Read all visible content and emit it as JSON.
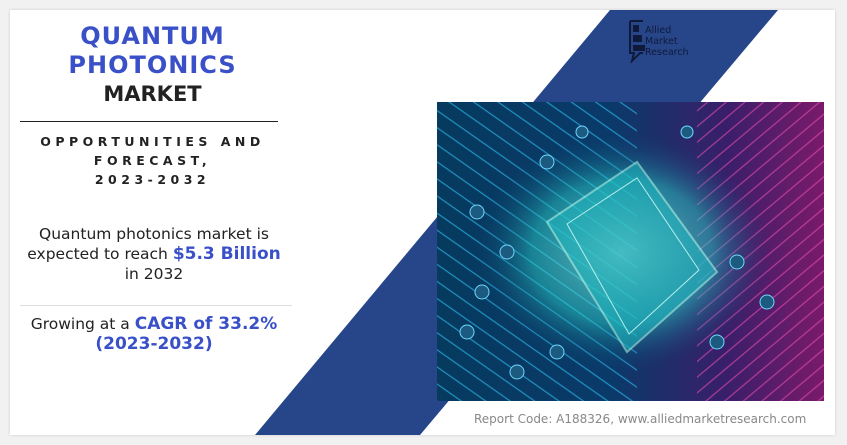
{
  "title": {
    "line1": "QUANTUM",
    "line2": "PHOTONICS",
    "line3": "MARKET"
  },
  "subtitle": {
    "line1": "OPPORTUNITIES AND",
    "line2": "FORECAST,",
    "line3": "2023-2032"
  },
  "stat_reach": {
    "prefix": "Quantum photonics market is expected to reach ",
    "value": "$5.3 Billion",
    "suffix": " in 2032"
  },
  "stat_cagr": {
    "prefix": "Growing at a ",
    "value": "CAGR of 33.2% (2023-2032)"
  },
  "logo": {
    "line1": "Allied",
    "line2": "Market",
    "line3": "Research"
  },
  "footer": {
    "report_code": "Report Code: A188326, www.alliedmarketresearch.com"
  },
  "colors": {
    "accent": "#3a50c8",
    "band": "#27468a",
    "text": "#222222"
  }
}
